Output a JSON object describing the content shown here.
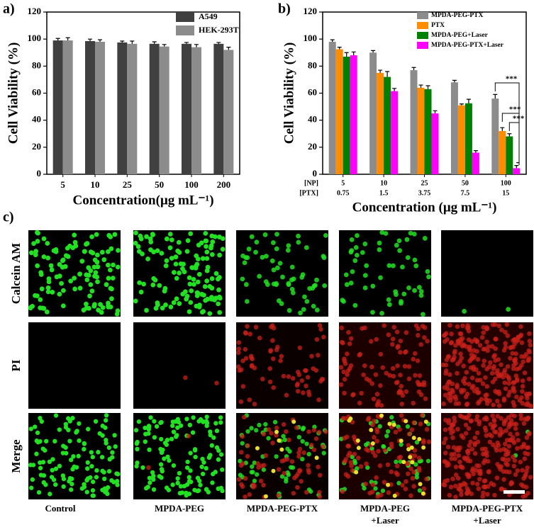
{
  "chart_data": [
    {
      "type": "bar",
      "panel_label": "a)",
      "y_label": "Cell Viability (%)",
      "x_label": "Concentration(μg mL⁻¹)",
      "categories": [
        "5",
        "10",
        "25",
        "50",
        "100",
        "200"
      ],
      "series": [
        {
          "name": "A549",
          "color": "#404040",
          "values": [
            99,
            98.5,
            97.5,
            96.5,
            96.5,
            96.5
          ],
          "errors": [
            1.5,
            1.5,
            1,
            1.5,
            1,
            1
          ]
        },
        {
          "name": "HEK-293T",
          "color": "#8c8c8c",
          "values": [
            99,
            98,
            96.5,
            94.5,
            94,
            92
          ],
          "errors": [
            2,
            1.5,
            2,
            1.5,
            2,
            2
          ]
        }
      ],
      "ylim": [
        0,
        120
      ],
      "yticks": [
        0,
        20,
        40,
        60,
        80,
        100,
        120
      ],
      "legend": "upper right"
    },
    {
      "type": "bar",
      "panel_label": "b)",
      "y_label": "Cell Viability (%)",
      "x_label": "Concentration (μg mL⁻¹)",
      "row_labels": [
        "[NP]",
        "[PTX]"
      ],
      "categories": [
        "5",
        "10",
        "25",
        "50",
        "100"
      ],
      "categories2": [
        "0.75",
        "1.5",
        "3.75",
        "7.5",
        "15"
      ],
      "series": [
        {
          "name": "MPDA-PEG-PTX",
          "color": "#8c8c8c",
          "values": [
            98,
            90,
            77,
            68,
            56
          ],
          "errors": [
            1.5,
            1.5,
            2,
            1.5,
            3
          ]
        },
        {
          "name": "PTX",
          "color": "#ff8c00",
          "values": [
            92.5,
            75,
            64,
            51,
            32
          ],
          "errors": [
            1.5,
            2,
            2,
            1,
            2.5
          ]
        },
        {
          "name": "MPDA-PEG+Laser",
          "color": "#008000",
          "values": [
            87,
            72,
            63,
            52.5,
            28
          ],
          "errors": [
            3,
            4,
            2.5,
            3,
            2
          ]
        },
        {
          "name": "MPDA-PEG-PTX+Laser",
          "color": "#ff00ff",
          "values": [
            88,
            61.5,
            45,
            16,
            4.5
          ],
          "errors": [
            2.5,
            2,
            2,
            1.5,
            2
          ]
        }
      ],
      "annotations": [
        "***",
        "***",
        "***"
      ],
      "ylim": [
        0,
        120
      ],
      "yticks": [
        0,
        20,
        40,
        60,
        80,
        100,
        120
      ],
      "legend": "upper right"
    }
  ],
  "panel_c": {
    "label": "c)",
    "rows": [
      "Calcein AM",
      "PI",
      "Merge"
    ],
    "columns": [
      [
        "Control"
      ],
      [
        "MPDA-PEG"
      ],
      [
        "MPDA-PEG-PTX"
      ],
      [
        "MPDA-PEG",
        "+Laser"
      ],
      [
        "MPDA-PEG-PTX",
        "+Laser"
      ]
    ]
  }
}
